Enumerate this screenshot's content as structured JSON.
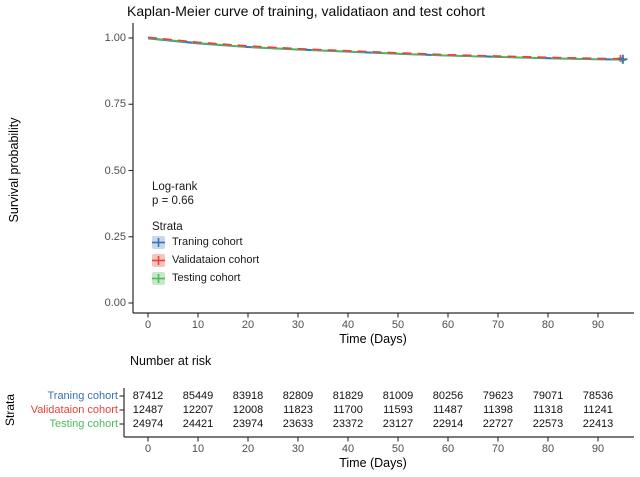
{
  "chart": {
    "title": "Kaplan-Meier curve of training, validatiaon and test cohort",
    "y_axis": {
      "label": "Survival probability",
      "ticks": [
        "1.00",
        "0.75",
        "0.50",
        "0.25",
        "0.00"
      ]
    },
    "x_axis": {
      "label": "Time (Days)",
      "ticks": [
        0,
        10,
        20,
        30,
        40,
        50,
        60,
        70,
        80,
        90
      ]
    },
    "annotation": {
      "line1": "Log-rank",
      "line2": "p = 0.66"
    },
    "legend": {
      "title": "Strata",
      "entries": [
        {
          "label": "Traning cohort",
          "color": "#3a72b8",
          "fill": "#c7d8ea"
        },
        {
          "label": "Validataion cohort",
          "color": "#e9413b",
          "fill": "#f7c2c0"
        },
        {
          "label": "Testing cohort",
          "color": "#4cbb59",
          "fill": "#c4e9ca"
        }
      ]
    }
  },
  "chart_data": {
    "type": "line",
    "subtype": "kaplan-meier",
    "title": "Kaplan-Meier curve of training, validatiaon and test cohort",
    "xlabel": "Time (Days)",
    "ylabel": "Survival probability",
    "xlim": [
      0,
      95
    ],
    "ylim": [
      0,
      1.0
    ],
    "grid": false,
    "legend_position": "inside-left-middle",
    "x": [
      0,
      10,
      20,
      30,
      40,
      50,
      60,
      70,
      80,
      90,
      95
    ],
    "series": [
      {
        "name": "Traning cohort",
        "color": "#3a72b8",
        "values": [
          1.0,
          0.981,
          0.967,
          0.958,
          0.95,
          0.942,
          0.935,
          0.93,
          0.925,
          0.921,
          0.92
        ]
      },
      {
        "name": "Validataion cohort",
        "color": "#e9413b",
        "values": [
          1.0,
          0.981,
          0.967,
          0.957,
          0.949,
          0.941,
          0.934,
          0.929,
          0.924,
          0.92,
          0.919
        ]
      },
      {
        "name": "Testing cohort",
        "color": "#4cbb59",
        "values": [
          1.0,
          0.981,
          0.966,
          0.957,
          0.949,
          0.941,
          0.934,
          0.929,
          0.924,
          0.92,
          0.919
        ]
      }
    ],
    "log_rank_p": "p = 0.66"
  },
  "risk_table": {
    "title": "Number at risk",
    "axis_label": "Strata",
    "x_axis": {
      "label": "Time (Days)",
      "ticks": [
        0,
        10,
        20,
        30,
        40,
        50,
        60,
        70,
        80,
        90
      ]
    },
    "rows": [
      {
        "label": "Traning cohort",
        "color": "#3a72b8",
        "values": [
          "87412",
          "85449",
          "83918",
          "82809",
          "81829",
          "81009",
          "80256",
          "79623",
          "79071",
          "78536"
        ]
      },
      {
        "label": "Validataion cohort",
        "color": "#e9413b",
        "values": [
          "12487",
          "12207",
          "12008",
          "11823",
          "11700",
          "11593",
          "11487",
          "11398",
          "11318",
          "11241"
        ]
      },
      {
        "label": "Testing cohort",
        "color": "#4cbb59",
        "values": [
          "24974",
          "24421",
          "23974",
          "23633",
          "23372",
          "23127",
          "22914",
          "22727",
          "22573",
          "22413"
        ]
      }
    ]
  }
}
